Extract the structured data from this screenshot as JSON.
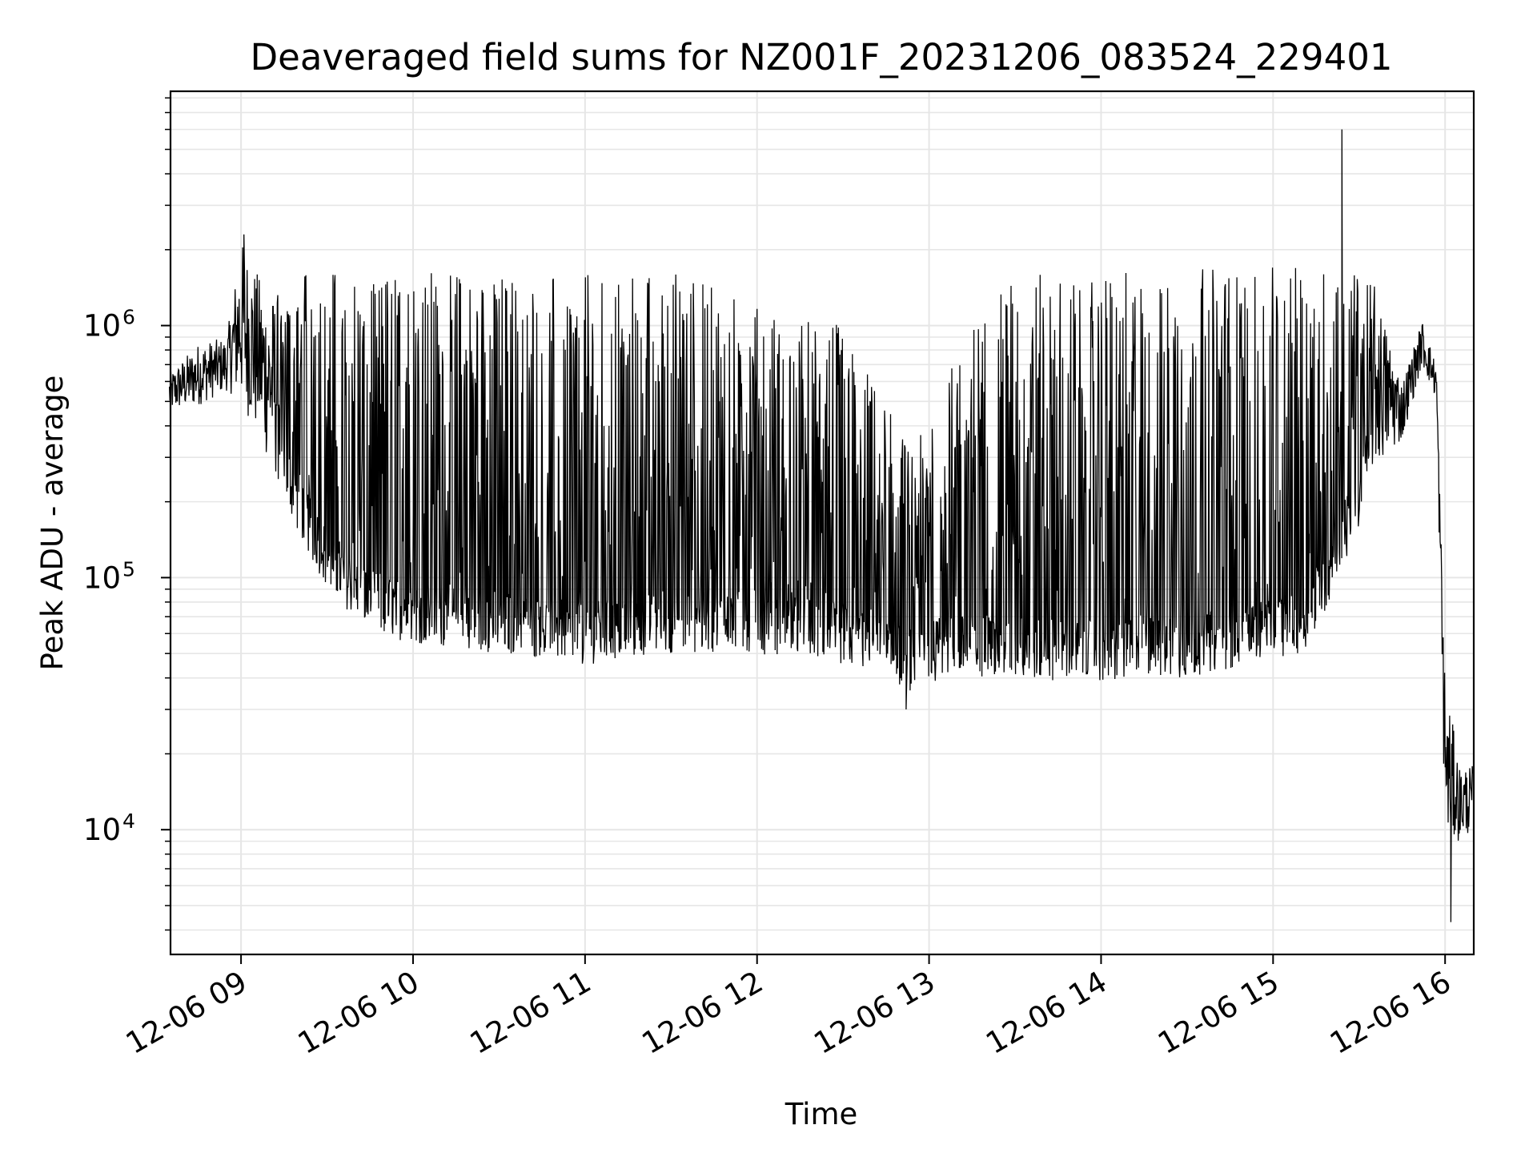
{
  "chart_data": {
    "type": "line",
    "title": "Deaveraged field sums for NZ001F_20231206_083524_229401",
    "xlabel": "Time",
    "ylabel": "Peak ADU - average",
    "yscale": "log",
    "grid": true,
    "line_color": "#000000",
    "grid_color": "#e6e6e6",
    "xlim": [
      "2023-12-06 08:35:24",
      "2023-12-06 16:10"
    ],
    "ylim": [
      3200,
      8500000
    ],
    "x_ticks": [
      {
        "time": "2023-12-06 09:00",
        "label": "12-06 09"
      },
      {
        "time": "2023-12-06 10:00",
        "label": "12-06 10"
      },
      {
        "time": "2023-12-06 11:00",
        "label": "12-06 11"
      },
      {
        "time": "2023-12-06 12:00",
        "label": "12-06 12"
      },
      {
        "time": "2023-12-06 13:00",
        "label": "12-06 13"
      },
      {
        "time": "2023-12-06 14:00",
        "label": "12-06 14"
      },
      {
        "time": "2023-12-06 15:00",
        "label": "12-06 15"
      },
      {
        "time": "2023-12-06 16:00",
        "label": "12-06 16"
      }
    ],
    "y_ticks": [
      {
        "value": 10000,
        "base": "10",
        "exp": "4"
      },
      {
        "value": 100000,
        "base": "10",
        "exp": "5"
      },
      {
        "value": 1000000,
        "base": "10",
        "exp": "6"
      }
    ],
    "series": [
      {
        "envelope": {
          "description_units": "time, low value, high value (approximate envelope of a dense noisy signal)",
          "points": [
            [
              "2023-12-06 08:35",
              450000,
              650000
            ],
            [
              "2023-12-06 08:45",
              480000,
              850000
            ],
            [
              "2023-12-06 08:55",
              550000,
              900000
            ],
            [
              "2023-12-06 09:00",
              500000,
              2200000
            ],
            [
              "2023-12-06 09:10",
              280000,
              1300000
            ],
            [
              "2023-12-06 09:20",
              150000,
              1600000
            ],
            [
              "2023-12-06 09:30",
              90000,
              1700000
            ],
            [
              "2023-12-06 09:45",
              60000,
              1700000
            ],
            [
              "2023-12-06 10:00",
              55000,
              1700000
            ],
            [
              "2023-12-06 10:30",
              50000,
              1650000
            ],
            [
              "2023-12-06 11:00",
              45000,
              1600000
            ],
            [
              "2023-12-06 11:30",
              50000,
              1700000
            ],
            [
              "2023-12-06 12:00",
              50000,
              1200000
            ],
            [
              "2023-12-06 12:30",
              45000,
              1000000
            ],
            [
              "2023-12-06 12:55",
              35000,
              300000
            ],
            [
              "2023-12-06 13:05",
              40000,
              800000
            ],
            [
              "2023-12-06 13:30",
              40000,
              1600000
            ],
            [
              "2023-12-06 14:00",
              38000,
              1600000
            ],
            [
              "2023-12-06 14:30",
              40000,
              1700000
            ],
            [
              "2023-12-06 14:50",
              45000,
              1700000
            ],
            [
              "2023-12-06 15:10",
              50000,
              1700000
            ],
            [
              "2023-12-06 15:25",
              100000,
              1700000
            ],
            [
              "2023-12-06 15:35",
              260000,
              1500000
            ],
            [
              "2023-12-06 15:45",
              350000,
              600000
            ],
            [
              "2023-12-06 15:52",
              700000,
              1050000
            ],
            [
              "2023-12-06 15:57",
              500000,
              700000
            ],
            [
              "2023-12-06 16:00",
              9000,
              40000
            ],
            [
              "2023-12-06 16:05",
              9000,
              18000
            ],
            [
              "2023-12-06 16:10",
              10000,
              18000
            ]
          ]
        },
        "spikes": [
          {
            "time": "2023-12-06 09:01",
            "value": 2300000
          },
          {
            "time": "2023-12-06 15:24",
            "value": 6000000
          },
          {
            "time": "2023-12-06 12:52",
            "value": 30000
          },
          {
            "time": "2023-12-06 16:02",
            "value": 4300
          }
        ]
      }
    ]
  }
}
